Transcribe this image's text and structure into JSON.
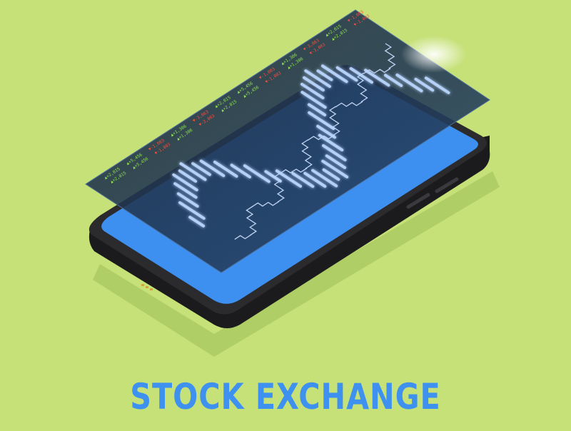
{
  "title": "STOCK EXCHANGE",
  "colors": {
    "background": "#c6e178",
    "phone_body": "#2b2b2e",
    "phone_screen": "#3d8ff0",
    "glass_panel": "#1f2f46",
    "candle_glow": "#bcd7ff",
    "step_line": "#bfd3f2",
    "up_tick": "#8de34e",
    "down_tick": "#ff4b3b",
    "title_text": "#3e91ef"
  },
  "ticker": [
    {
      "dir": "up",
      "text": "+2,015"
    },
    {
      "dir": "up",
      "text": "+2,015"
    },
    {
      "dir": "up",
      "text": "+5,456"
    },
    {
      "dir": "up",
      "text": "+5,456"
    },
    {
      "dir": "down",
      "text": "-1,003"
    },
    {
      "dir": "down",
      "text": "-1,003"
    },
    {
      "dir": "up",
      "text": "+1,306"
    },
    {
      "dir": "up",
      "text": "+1,306"
    },
    {
      "dir": "down",
      "text": "-3,063"
    },
    {
      "dir": "down",
      "text": "-3,063"
    },
    {
      "dir": "up",
      "text": "+2,015"
    },
    {
      "dir": "up",
      "text": "+2,015"
    },
    {
      "dir": "up",
      "text": "+5,456"
    },
    {
      "dir": "up",
      "text": "+5,456"
    },
    {
      "dir": "down",
      "text": "-1,003"
    },
    {
      "dir": "down",
      "text": "-1,003"
    },
    {
      "dir": "up",
      "text": "+1,306"
    },
    {
      "dir": "up",
      "text": "+1,306"
    },
    {
      "dir": "down",
      "text": "-3,063"
    },
    {
      "dir": "down",
      "text": "-3,063"
    },
    {
      "dir": "up",
      "text": "+2,015"
    },
    {
      "dir": "up",
      "text": "+2,015"
    },
    {
      "dir": "down",
      "text": "-1,003"
    },
    {
      "dir": "down",
      "text": "-1,003"
    }
  ]
}
